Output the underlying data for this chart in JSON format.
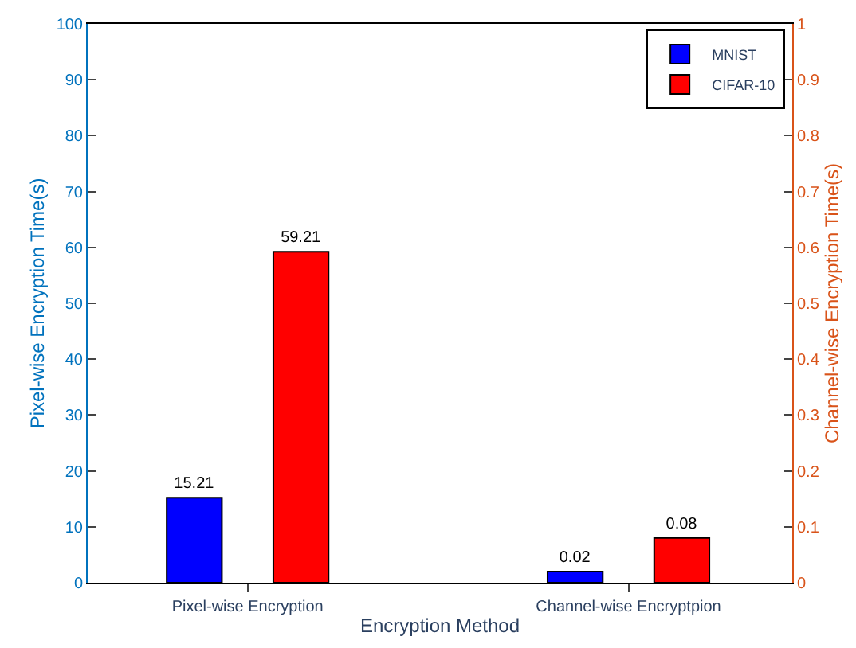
{
  "chart_data": {
    "type": "bar",
    "xlabel": "Encryption Method",
    "ylabel": "Pixel-wise Encryption Time(s)",
    "y2label": "Channel-wise Encryption Time(s)",
    "categories": [
      "Pixel-wise Encryption",
      "Channel-wise Encryptpion"
    ],
    "series": [
      {
        "name": "MNIST",
        "color": "#0000ff",
        "values": [
          15.21,
          null
        ]
      },
      {
        "name": "CIFAR-10",
        "color": "#ff0000",
        "values": [
          59.21,
          null
        ]
      },
      {
        "color": "#0000ff",
        "values": [
          null,
          0.02
        ],
        "axis": "y2"
      },
      {
        "color": "#ff0000",
        "values": [
          null,
          0.08
        ],
        "axis": "y2"
      }
    ],
    "ylim": [
      0,
      100
    ],
    "yticks": [
      0,
      10,
      20,
      30,
      40,
      50,
      60,
      70,
      80,
      90,
      100
    ],
    "y2lim": [
      0,
      1
    ],
    "y2ticks": [
      0,
      0.1,
      0.2,
      0.3,
      0.4,
      0.5,
      0.6,
      0.7,
      0.8,
      0.9,
      1
    ],
    "data_labels": true,
    "legend": "top right"
  }
}
